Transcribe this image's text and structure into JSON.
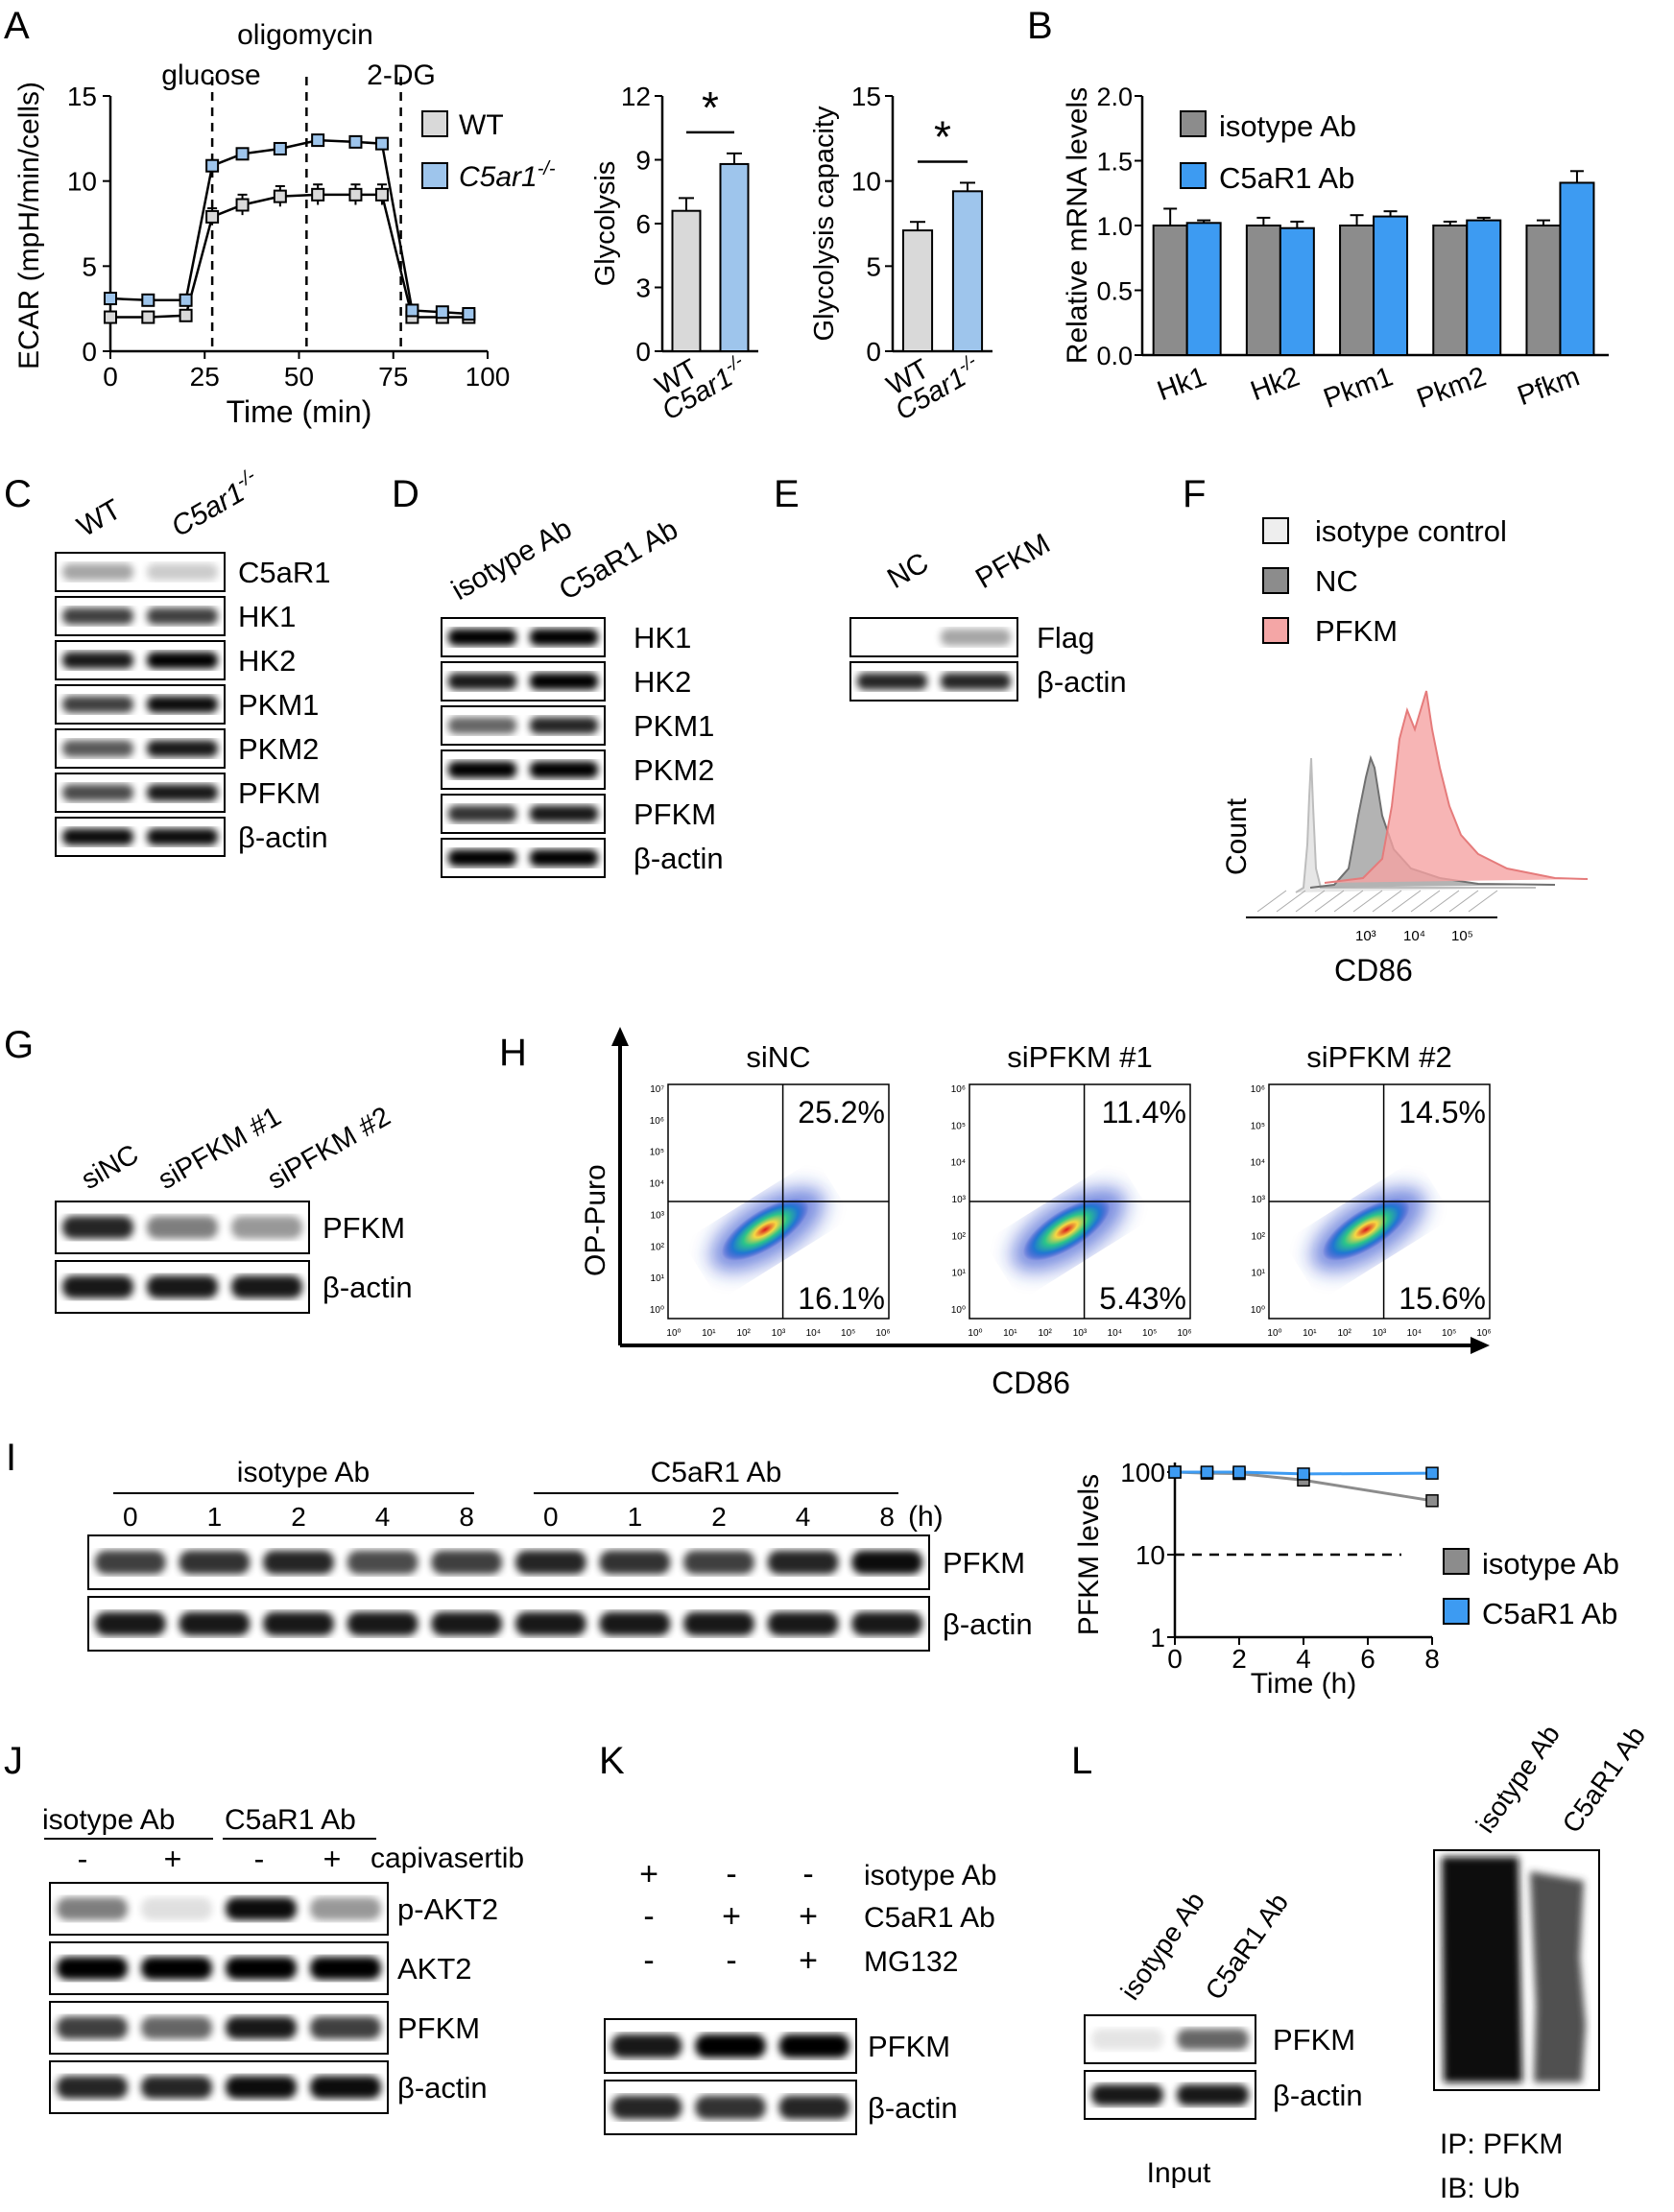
{
  "panel_letters": [
    "A",
    "B",
    "C",
    "D",
    "E",
    "F",
    "G",
    "H",
    "I",
    "J",
    "K",
    "L"
  ],
  "colors": {
    "wt_fill": "#d9d9d9",
    "ko_fill": "#9ec5ec",
    "grey": "#8c8c8c",
    "blue": "#3d9bf2",
    "pink": "#f4a6a6"
  },
  "panelA": {
    "treatments": [
      "glucose",
      "oligomycin",
      "2-DG"
    ],
    "legend": [
      "WT",
      "C5ar1"
    ],
    "ko_sup": "-/-",
    "bar_x": [
      "WT",
      "C5ar1"
    ]
  },
  "panelB": {
    "legend": [
      "isotype Ab",
      "C5aR1 Ab"
    ]
  },
  "panelC": {
    "cols": [
      "WT",
      "C5ar1"
    ],
    "ko_sup": "-/-",
    "rows": [
      "C5aR1",
      "HK1",
      "HK2",
      "PKM1",
      "PKM2",
      "PFKM",
      "β-actin"
    ]
  },
  "panelD": {
    "cols": [
      "isotype Ab",
      "C5aR1 Ab"
    ],
    "rows": [
      "HK1",
      "HK2",
      "PKM1",
      "PKM2",
      "PFKM",
      "β-actin"
    ]
  },
  "panelE": {
    "cols": [
      "NC",
      "PFKM"
    ],
    "rows": [
      "Flag",
      "β-actin"
    ]
  },
  "panelF": {
    "legend": [
      "isotype control",
      "NC",
      "PFKM"
    ],
    "xlabel": "CD86",
    "ylabel": "Count",
    "ticks": [
      "10³",
      "10⁴",
      "10⁵"
    ]
  },
  "panelG": {
    "cols": [
      "siNC",
      "siPFKM #1",
      "siPFKM #2"
    ],
    "rows": [
      "PFKM",
      "β-actin"
    ]
  },
  "panelH": {
    "xlabel": "CD86",
    "ylabel": "OP-Puro",
    "plots": [
      {
        "title": "siNC",
        "upper": "25.2%",
        "lower": "16.1%"
      },
      {
        "title": "siPFKM #1",
        "upper": "11.4%",
        "lower": "5.43%"
      },
      {
        "title": "siPFKM #2",
        "upper": "14.5%",
        "lower": "15.6%"
      }
    ],
    "axis_ticks": [
      "10⁰",
      "10¹",
      "10²",
      "10³",
      "10⁴",
      "10⁵",
      "10⁶"
    ],
    "y_ticks_1": [
      "10⁰",
      "10¹",
      "10²",
      "10³",
      "10⁴",
      "10⁵",
      "10⁶",
      "10⁷"
    ]
  },
  "panelI": {
    "groups": [
      "isotype Ab",
      "C5aR1 Ab"
    ],
    "times": [
      "0",
      "1",
      "2",
      "4",
      "8",
      "0",
      "1",
      "2",
      "4",
      "8"
    ],
    "unit": "(h)",
    "rows": [
      "PFKM",
      "β-actin"
    ],
    "legend": [
      "isotype Ab",
      "C5aR1 Ab"
    ]
  },
  "panelJ": {
    "groups": [
      "isotype Ab",
      "C5aR1 Ab"
    ],
    "signs": [
      "-",
      "+",
      "-",
      "+"
    ],
    "treatment": "capivasertib",
    "rows": [
      "p-AKT2",
      "AKT2",
      "PFKM",
      "β-actin"
    ]
  },
  "panelK": {
    "conditions": [
      {
        "label": "isotype Ab",
        "signs": [
          "+",
          "-",
          "-"
        ]
      },
      {
        "label": "C5aR1 Ab",
        "signs": [
          "-",
          "+",
          "+"
        ]
      },
      {
        "label": "MG132",
        "signs": [
          "-",
          "-",
          "+"
        ]
      }
    ],
    "rows": [
      "PFKM",
      "β-actin"
    ]
  },
  "panelL": {
    "input_cols": [
      "isotype Ab",
      "C5aR1 Ab"
    ],
    "input_rows": [
      "PFKM",
      "β-actin"
    ],
    "input_label": "Input",
    "ip_cols": [
      "isotype Ab",
      "C5aR1 Ab"
    ],
    "ip_label": "IP: PFKM",
    "ib_label": "IB: Ub"
  },
  "chart_data": [
    {
      "id": "A-ECAR",
      "type": "line",
      "title": "",
      "xlabel": "Time (min)",
      "ylabel": "ECAR (mpH/min/cells)",
      "xlim": [
        0,
        100
      ],
      "ylim": [
        0,
        15
      ],
      "xticks": [
        0,
        25,
        50,
        75,
        100
      ],
      "yticks": [
        0,
        5,
        10,
        15
      ],
      "x": [
        0,
        10,
        20,
        27,
        35,
        45,
        55,
        65,
        72,
        80,
        88,
        95
      ],
      "series": [
        {
          "name": "WT",
          "values": [
            2.0,
            2.0,
            2.1,
            7.9,
            8.6,
            9.1,
            9.2,
            9.2,
            9.2,
            2.0,
            2.0,
            2.0
          ],
          "errors": [
            0.3,
            0.3,
            0.3,
            0.5,
            0.6,
            0.6,
            0.6,
            0.6,
            0.6,
            0.3,
            0.3,
            0.3
          ]
        },
        {
          "name": "C5ar1-/-",
          "values": [
            3.1,
            3.0,
            3.0,
            10.9,
            11.6,
            11.9,
            12.4,
            12.3,
            12.2,
            2.4,
            2.3,
            2.2
          ],
          "errors": [
            0.2,
            0.2,
            0.2,
            0.3,
            0.3,
            0.3,
            0.3,
            0.3,
            0.3,
            0.2,
            0.2,
            0.2
          ]
        }
      ],
      "annotations": [
        "glucose",
        "oligomycin",
        "2-DG"
      ]
    },
    {
      "id": "A-glycolysis",
      "type": "bar",
      "categories": [
        "WT",
        "C5ar1-/-"
      ],
      "values": [
        6.6,
        8.8
      ],
      "errors": [
        0.6,
        0.5
      ],
      "ylabel": "Glycolysis",
      "ylim": [
        0,
        12
      ],
      "yticks": [
        0,
        3,
        6,
        9,
        12
      ],
      "significance": "*"
    },
    {
      "id": "A-capacity",
      "type": "bar",
      "categories": [
        "WT",
        "C5ar1-/-"
      ],
      "values": [
        7.1,
        9.4
      ],
      "errors": [
        0.5,
        0.5
      ],
      "ylabel": "Glycolysis capacity",
      "ylim": [
        0,
        15
      ],
      "yticks": [
        0,
        5,
        10,
        15
      ],
      "significance": "*"
    },
    {
      "id": "B",
      "type": "bar",
      "categories": [
        "Hk1",
        "Hk2",
        "Pkm1",
        "Pkm2",
        "Pfkm"
      ],
      "series": [
        {
          "name": "isotype Ab",
          "values": [
            1.0,
            1.0,
            1.0,
            1.0,
            1.0
          ],
          "errors": [
            0.13,
            0.06,
            0.08,
            0.03,
            0.04
          ]
        },
        {
          "name": "C5aR1 Ab",
          "values": [
            1.02,
            0.98,
            1.07,
            1.04,
            1.33
          ],
          "errors": [
            0.02,
            0.05,
            0.04,
            0.02,
            0.09
          ]
        }
      ],
      "ylabel": "Relative mRNA levels",
      "ylim": [
        0,
        2.0
      ],
      "yticks": [
        0.0,
        0.5,
        1.0,
        1.5,
        2.0
      ]
    },
    {
      "id": "I-quant",
      "type": "line",
      "xlabel": "Time (h)",
      "ylabel": "PFKM levels",
      "yscale": "log",
      "x": [
        0,
        1,
        2,
        4,
        8
      ],
      "xlim": [
        0,
        8
      ],
      "ylim": [
        1,
        100
      ],
      "yticks": [
        1,
        10,
        100
      ],
      "xticks": [
        0,
        2,
        4,
        6,
        8
      ],
      "series": [
        {
          "name": "isotype Ab",
          "values": [
            100,
            97,
            96,
            80,
            45
          ]
        },
        {
          "name": "C5aR1 Ab",
          "values": [
            100,
            100,
            100,
            95,
            97
          ]
        }
      ],
      "reference_line": 10
    }
  ]
}
